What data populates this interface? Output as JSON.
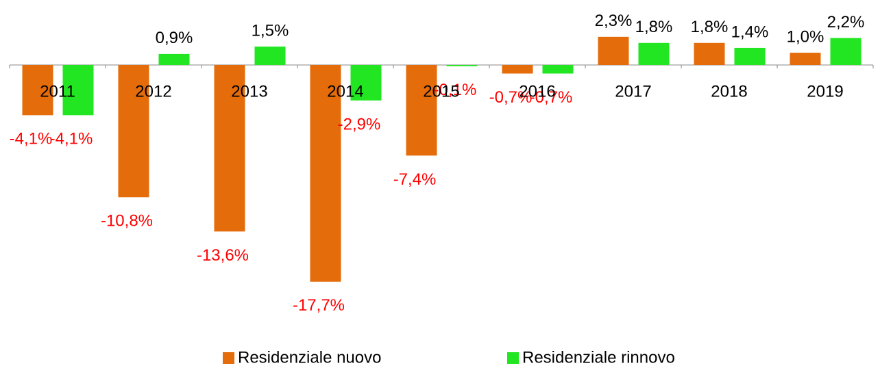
{
  "chart_data": {
    "type": "bar",
    "categories": [
      "2011",
      "2012",
      "2013",
      "2014",
      "2015",
      "2016",
      "2017",
      "2018",
      "2019"
    ],
    "series": [
      {
        "name": "Residenziale nuovo",
        "color": "#e46c0a",
        "values": [
          -4.1,
          -10.8,
          -13.6,
          -17.7,
          -7.4,
          -0.7,
          2.3,
          1.8,
          1.0
        ],
        "value_labels": [
          "-4,1%",
          "-10,8%",
          "-13,6%",
          "-17,7%",
          "-7,4%",
          "-0,7%",
          "2,3%",
          "1,8%",
          "1,0%"
        ]
      },
      {
        "name": "Residenziale rinnovo",
        "color": "#22e622",
        "values": [
          -4.1,
          0.9,
          1.5,
          -2.9,
          -0.1,
          -0.7,
          1.8,
          1.4,
          2.2
        ],
        "value_labels": [
          "-4,1%",
          "0,9%",
          "1,5%",
          "-2,9%",
          "-0,1%",
          "-0,7%",
          "1,8%",
          "1,4%",
          "2,2%"
        ]
      }
    ],
    "negative_label_color": "#ff0000"
  }
}
